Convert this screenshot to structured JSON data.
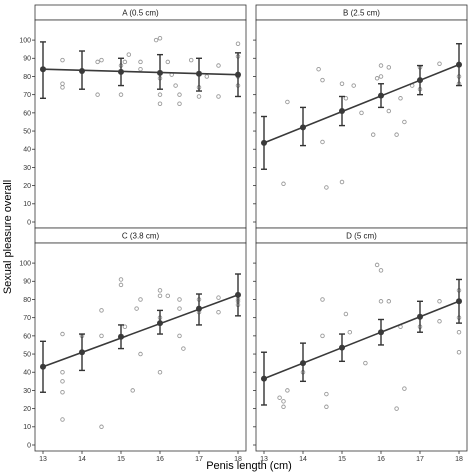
{
  "figure": {
    "ylabel": "Sexual pleasure overall",
    "xlabel": "Penis length (cm)"
  },
  "chart_data": [
    {
      "type": "scatter",
      "title": "A (0.5 cm)",
      "xlim": [
        13,
        18
      ],
      "ylim": [
        0,
        105
      ],
      "xticks": [
        "13",
        "14",
        "15",
        "16",
        "17",
        "18"
      ],
      "yticks": [
        "0",
        "10",
        "20",
        "30",
        "40",
        "50",
        "60",
        "70",
        "80",
        "90",
        "100"
      ],
      "means": [
        {
          "x": 13,
          "y": 84,
          "lo": 68,
          "hi": 99
        },
        {
          "x": 14,
          "y": 83,
          "lo": 73,
          "hi": 94
        },
        {
          "x": 15,
          "y": 82.5,
          "lo": 75,
          "hi": 90
        },
        {
          "x": 16,
          "y": 82,
          "lo": 73,
          "hi": 92
        },
        {
          "x": 17,
          "y": 81.5,
          "lo": 72,
          "hi": 90
        },
        {
          "x": 18,
          "y": 81,
          "lo": 69,
          "hi": 93
        }
      ],
      "fit": [
        {
          "x": 13,
          "y": 84
        },
        {
          "x": 18,
          "y": 81
        }
      ],
      "points": [
        [
          13.5,
          74
        ],
        [
          13.5,
          76
        ],
        [
          13.5,
          89
        ],
        [
          14.4,
          88
        ],
        [
          14.4,
          70
        ],
        [
          14.5,
          89
        ],
        [
          15,
          86
        ],
        [
          15,
          70
        ],
        [
          15.1,
          88
        ],
        [
          15.2,
          92
        ],
        [
          15.5,
          88
        ],
        [
          15.5,
          84
        ],
        [
          15.9,
          100
        ],
        [
          16,
          101
        ],
        [
          16,
          70
        ],
        [
          16,
          65
        ],
        [
          16,
          79
        ],
        [
          16.2,
          88
        ],
        [
          16.3,
          81
        ],
        [
          16.4,
          75
        ],
        [
          16.5,
          70
        ],
        [
          16.5,
          65
        ],
        [
          16.8,
          89
        ],
        [
          17,
          74
        ],
        [
          17,
          69
        ],
        [
          17.2,
          80
        ],
        [
          17.5,
          86
        ],
        [
          17.5,
          69
        ],
        [
          18,
          98
        ],
        [
          18,
          91
        ],
        [
          18,
          80
        ],
        [
          18,
          75
        ]
      ]
    },
    {
      "type": "scatter",
      "title": "B (2.5 cm)",
      "xlim": [
        13,
        18
      ],
      "ylim": [
        0,
        105
      ],
      "xticks": [
        "13",
        "14",
        "15",
        "16",
        "17",
        "18"
      ],
      "yticks": [
        "0",
        "10",
        "20",
        "30",
        "40",
        "50",
        "60",
        "70",
        "80",
        "90",
        "100"
      ],
      "means": [
        {
          "x": 13,
          "y": 43.5,
          "lo": 29,
          "hi": 58
        },
        {
          "x": 14,
          "y": 52,
          "lo": 42,
          "hi": 63
        },
        {
          "x": 15,
          "y": 61,
          "lo": 53,
          "hi": 69
        },
        {
          "x": 16,
          "y": 69.5,
          "lo": 63,
          "hi": 76
        },
        {
          "x": 17,
          "y": 78,
          "lo": 70,
          "hi": 86
        },
        {
          "x": 18,
          "y": 86.5,
          "lo": 75,
          "hi": 98
        }
      ],
      "fit": [
        {
          "x": 13,
          "y": 43.5
        },
        {
          "x": 18,
          "y": 86.5
        }
      ],
      "points": [
        [
          13.5,
          21
        ],
        [
          13.6,
          66
        ],
        [
          14.4,
          84
        ],
        [
          14.5,
          44
        ],
        [
          14.5,
          78
        ],
        [
          14.6,
          19
        ],
        [
          15,
          76
        ],
        [
          15,
          22
        ],
        [
          15.1,
          68
        ],
        [
          15.3,
          75
        ],
        [
          15.5,
          60
        ],
        [
          15.8,
          48
        ],
        [
          15.9,
          79
        ],
        [
          16,
          86
        ],
        [
          16,
          80
        ],
        [
          16.2,
          85
        ],
        [
          16.2,
          61
        ],
        [
          16.4,
          48
        ],
        [
          16.5,
          68
        ],
        [
          16.6,
          55
        ],
        [
          16.8,
          75
        ],
        [
          17,
          85
        ],
        [
          17,
          73
        ],
        [
          17.5,
          87
        ],
        [
          18,
          86
        ],
        [
          18,
          80
        ],
        [
          18,
          76
        ]
      ]
    },
    {
      "type": "scatter",
      "title": "C (3.8 cm)",
      "xlim": [
        13,
        18
      ],
      "ylim": [
        0,
        105
      ],
      "xticks": [
        "13",
        "14",
        "15",
        "16",
        "17",
        "18"
      ],
      "yticks": [
        "0",
        "10",
        "20",
        "30",
        "40",
        "50",
        "60",
        "70",
        "80",
        "90",
        "100"
      ],
      "means": [
        {
          "x": 13,
          "y": 43,
          "lo": 29,
          "hi": 57
        },
        {
          "x": 14,
          "y": 51,
          "lo": 41,
          "hi": 61
        },
        {
          "x": 15,
          "y": 59.5,
          "lo": 53,
          "hi": 66
        },
        {
          "x": 16,
          "y": 67,
          "lo": 61,
          "hi": 74
        },
        {
          "x": 17,
          "y": 75,
          "lo": 66,
          "hi": 83
        },
        {
          "x": 18,
          "y": 82.5,
          "lo": 71,
          "hi": 94
        }
      ],
      "fit": [
        {
          "x": 13,
          "y": 43
        },
        {
          "x": 18,
          "y": 82.5
        }
      ],
      "points": [
        [
          13.5,
          61
        ],
        [
          13.5,
          40
        ],
        [
          13.5,
          35
        ],
        [
          13.5,
          29
        ],
        [
          13.5,
          14
        ],
        [
          14,
          60
        ],
        [
          14.5,
          74
        ],
        [
          14.5,
          60
        ],
        [
          14.5,
          10
        ],
        [
          15,
          91
        ],
        [
          15,
          88
        ],
        [
          15.1,
          65
        ],
        [
          15.3,
          30
        ],
        [
          15.4,
          75
        ],
        [
          15.5,
          80
        ],
        [
          15.5,
          50
        ],
        [
          16,
          85
        ],
        [
          16,
          82
        ],
        [
          16,
          70
        ],
        [
          16,
          40
        ],
        [
          16.2,
          82
        ],
        [
          16.5,
          80
        ],
        [
          16.5,
          75
        ],
        [
          16.5,
          60
        ],
        [
          16.6,
          53
        ],
        [
          17,
          80
        ],
        [
          17,
          73
        ],
        [
          17.5,
          81
        ],
        [
          17.5,
          73
        ],
        [
          18,
          80
        ],
        [
          18,
          79
        ],
        [
          18,
          77
        ]
      ]
    },
    {
      "type": "scatter",
      "title": "D (5 cm)",
      "xlim": [
        13,
        18
      ],
      "ylim": [
        0,
        105
      ],
      "xticks": [
        "13",
        "14",
        "15",
        "16",
        "17",
        "18"
      ],
      "yticks": [
        "0",
        "10",
        "20",
        "30",
        "40",
        "50",
        "60",
        "70",
        "80",
        "90",
        "100"
      ],
      "means": [
        {
          "x": 13,
          "y": 36.5,
          "lo": 22,
          "hi": 51
        },
        {
          "x": 14,
          "y": 45,
          "lo": 35,
          "hi": 56
        },
        {
          "x": 15,
          "y": 53.5,
          "lo": 46,
          "hi": 61
        },
        {
          "x": 16,
          "y": 62,
          "lo": 55,
          "hi": 69
        },
        {
          "x": 17,
          "y": 70.5,
          "lo": 62,
          "hi": 79
        },
        {
          "x": 18,
          "y": 79,
          "lo": 67,
          "hi": 91
        }
      ],
      "fit": [
        {
          "x": 13,
          "y": 36.5
        },
        {
          "x": 18,
          "y": 79
        }
      ],
      "points": [
        [
          13.4,
          26
        ],
        [
          13.5,
          24
        ],
        [
          13.5,
          21
        ],
        [
          13.6,
          30
        ],
        [
          14,
          40
        ],
        [
          14.5,
          80
        ],
        [
          14.5,
          60
        ],
        [
          14.6,
          28
        ],
        [
          14.6,
          21
        ],
        [
          15.1,
          72
        ],
        [
          15.2,
          62
        ],
        [
          15.6,
          45
        ],
        [
          15.9,
          99
        ],
        [
          16,
          96
        ],
        [
          16,
          79
        ],
        [
          16.2,
          79
        ],
        [
          16.4,
          20
        ],
        [
          16.5,
          65
        ],
        [
          16.6,
          31
        ],
        [
          17,
          70
        ],
        [
          17,
          65
        ],
        [
          17.5,
          79
        ],
        [
          17.5,
          68
        ],
        [
          18,
          85
        ],
        [
          18,
          70
        ],
        [
          18,
          62
        ],
        [
          18,
          51
        ]
      ]
    }
  ]
}
